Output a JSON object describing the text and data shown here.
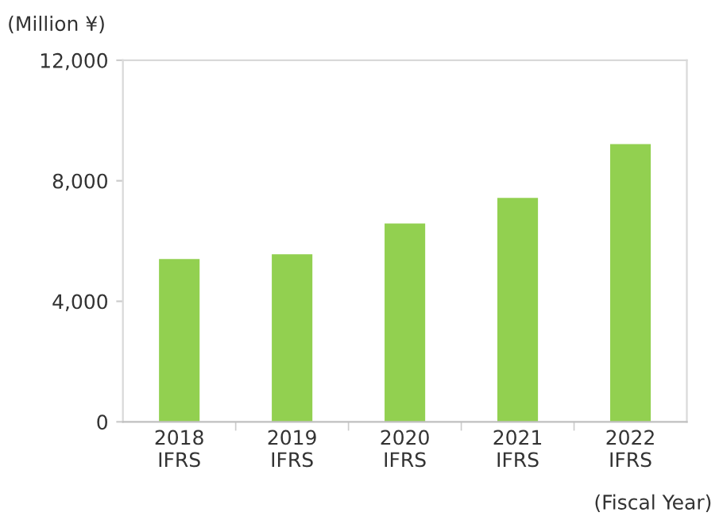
{
  "chart_data": {
    "type": "bar",
    "categories": [
      "2018\nIFRS",
      "2019\nIFRS",
      "2020\nIFRS",
      "2021\nIFRS",
      "2022\nIFRS"
    ],
    "values": [
      5400,
      5560,
      6580,
      7430,
      9220
    ],
    "color": "#92d050",
    "ylabel": "(Million ¥)",
    "xlabel": "(Fiscal Year)",
    "ylim": [
      0,
      12000
    ],
    "yticks": [
      {
        "value": 0,
        "label": "0"
      },
      {
        "value": 4000,
        "label": "4,000"
      },
      {
        "value": 8000,
        "label": "8,000"
      },
      {
        "value": 12000,
        "label": "12,000"
      }
    ],
    "grid": false
  }
}
